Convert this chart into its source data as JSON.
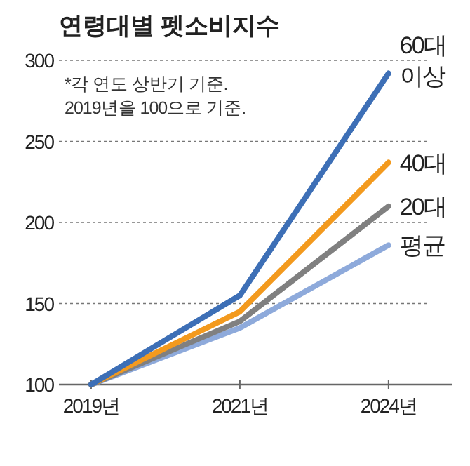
{
  "chart_data": {
    "type": "line",
    "title": "연령대별 펫소비지수",
    "annotations": [
      "*각 연도 상반기 기준.",
      "2019년을 100으로 기준."
    ],
    "categories": [
      "2019년",
      "2021년",
      "2024년"
    ],
    "series": [
      {
        "name": "60대 이상",
        "color": "#3d6fb6",
        "values": [
          100,
          155,
          292
        ]
      },
      {
        "name": "40대",
        "color": "#f39a1e",
        "values": [
          100,
          145,
          237
        ]
      },
      {
        "name": "20대",
        "color": "#808080",
        "values": [
          100,
          139,
          210
        ]
      },
      {
        "name": "평균",
        "color": "#8eaadb",
        "values": [
          100,
          135,
          186
        ]
      }
    ],
    "ylim": [
      100,
      300
    ],
    "yticks": [
      100,
      150,
      200,
      250,
      300
    ],
    "grid": "y",
    "legend": false,
    "marker": "none",
    "line_style": "solid"
  }
}
